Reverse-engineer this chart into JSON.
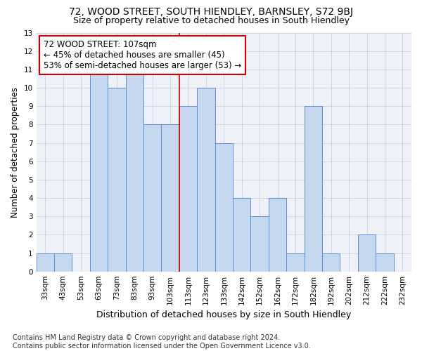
{
  "title1": "72, WOOD STREET, SOUTH HIENDLEY, BARNSLEY, S72 9BJ",
  "title2": "Size of property relative to detached houses in South Hiendley",
  "xlabel": "Distribution of detached houses by size in South Hiendley",
  "ylabel": "Number of detached properties",
  "footnote": "Contains HM Land Registry data © Crown copyright and database right 2024.\nContains public sector information licensed under the Open Government Licence v3.0.",
  "categories": [
    "33sqm",
    "43sqm",
    "53sqm",
    "63sqm",
    "73sqm",
    "83sqm",
    "93sqm",
    "103sqm",
    "113sqm",
    "123sqm",
    "133sqm",
    "142sqm",
    "152sqm",
    "162sqm",
    "172sqm",
    "182sqm",
    "192sqm",
    "202sqm",
    "212sqm",
    "222sqm",
    "232sqm"
  ],
  "values": [
    1,
    1,
    0,
    11,
    10,
    11,
    8,
    8,
    9,
    10,
    7,
    4,
    3,
    4,
    1,
    9,
    1,
    0,
    2,
    1,
    0
  ],
  "bar_color": "#c5d8f0",
  "bar_edge_color": "#5b8fd4",
  "vline_x_idx": 7.5,
  "vline_label": "72 WOOD STREET: 107sqm",
  "pct_smaller": "45% of detached houses are smaller (45)",
  "pct_larger": "53% of semi-detached houses are larger (53)",
  "annotation_box_color": "#ffffff",
  "annotation_box_edge": "#cc0000",
  "vline_color": "#cc0000",
  "ylim": [
    0,
    13
  ],
  "yticks": [
    0,
    1,
    2,
    3,
    4,
    5,
    6,
    7,
    8,
    9,
    10,
    11,
    12,
    13
  ],
  "grid_color": "#c8d0de",
  "bg_color": "#eef2f8",
  "title1_fontsize": 10,
  "title2_fontsize": 9,
  "xlabel_fontsize": 9,
  "ylabel_fontsize": 8.5,
  "tick_fontsize": 7.5,
  "annot_fontsize": 8.5,
  "footnote_fontsize": 7
}
